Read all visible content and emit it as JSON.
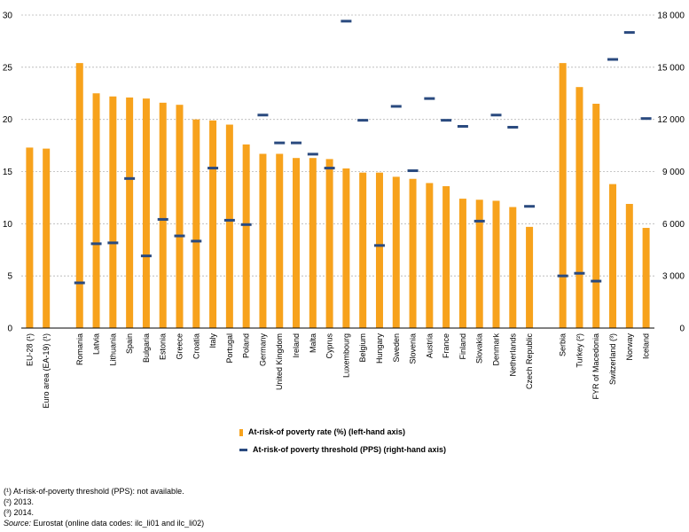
{
  "chart_data": {
    "type": "bar",
    "categories": [
      "EU-28 (¹)",
      "Euro area (EA-19) (¹)",
      "",
      "Romania",
      "Latvia",
      "Lithuania",
      "Spain",
      "Bulgaria",
      "Estonia",
      "Greece",
      "Croatia",
      "Italy",
      "Portugal",
      "Poland",
      "Germany",
      "United Kingdom",
      "Ireland",
      "Malta",
      "Cyprus",
      "Luxembourg",
      "Belgium",
      "Hungary",
      "Sweden",
      "Slovenia",
      "Austria",
      "France",
      "Finland",
      "Slovakia",
      "Denmark",
      "Netherlands",
      "Czech Republic",
      "",
      "Serbia",
      "Turkey (²)",
      "FYR of Macedonia",
      "Switzerland (³)",
      "Norway",
      "Iceland"
    ],
    "series": [
      {
        "name": "At-risk-of poverty rate (%) (left-hand axis)",
        "type": "bar",
        "axis": "left",
        "color": "#F7A21C",
        "values": [
          17.3,
          17.2,
          null,
          25.4,
          22.5,
          22.2,
          22.1,
          22.0,
          21.6,
          21.4,
          20.0,
          19.9,
          19.5,
          17.6,
          16.7,
          16.7,
          16.3,
          16.3,
          16.2,
          15.3,
          14.9,
          14.9,
          14.5,
          14.3,
          13.9,
          13.6,
          12.4,
          12.3,
          12.2,
          11.6,
          9.7,
          null,
          25.4,
          23.1,
          21.5,
          13.8,
          11.9,
          9.6
        ]
      },
      {
        "name": "At-risk-of-poverty threshold (PPS) (right-hand axis)",
        "type": "marker",
        "axis": "right",
        "color": "#2A4A7F",
        "values": [
          null,
          null,
          null,
          2600,
          4850,
          4900,
          8600,
          4150,
          6250,
          5300,
          5000,
          9200,
          6200,
          5950,
          12250,
          10650,
          10650,
          10000,
          9200,
          17650,
          11950,
          4750,
          12750,
          9050,
          13200,
          11950,
          11600,
          6150,
          12250,
          11550,
          7000,
          null,
          3000,
          3150,
          2700,
          15450,
          17000,
          12050
        ]
      }
    ],
    "y_left": {
      "min": 0,
      "max": 30,
      "ticks": [
        0,
        5,
        10,
        15,
        20,
        25,
        30
      ]
    },
    "y_right": {
      "min": 0,
      "max": 18000,
      "ticks": [
        0,
        3000,
        6000,
        9000,
        12000,
        15000,
        18000
      ],
      "tick_labels": [
        "0",
        "3 000",
        "6 000",
        "9 000",
        "12 000",
        "15 000",
        "18 000"
      ]
    },
    "grid": true,
    "legend_position": "bottom"
  },
  "legend": {
    "bar_label": "At-risk-of poverty rate (%) (left-hand axis)",
    "marker_label": "At-risk-of poverty threshold (PPS) (right-hand axis)"
  },
  "notes": {
    "n1": "(¹) At-risk-of-poverty threshold (PPS): not available.",
    "n2": "(²) 2013.",
    "n3": "(³) 2014.",
    "source_label": "Source:",
    "source_text": " Eurostat (online data codes: ilc_li01 and ilc_li02)"
  }
}
